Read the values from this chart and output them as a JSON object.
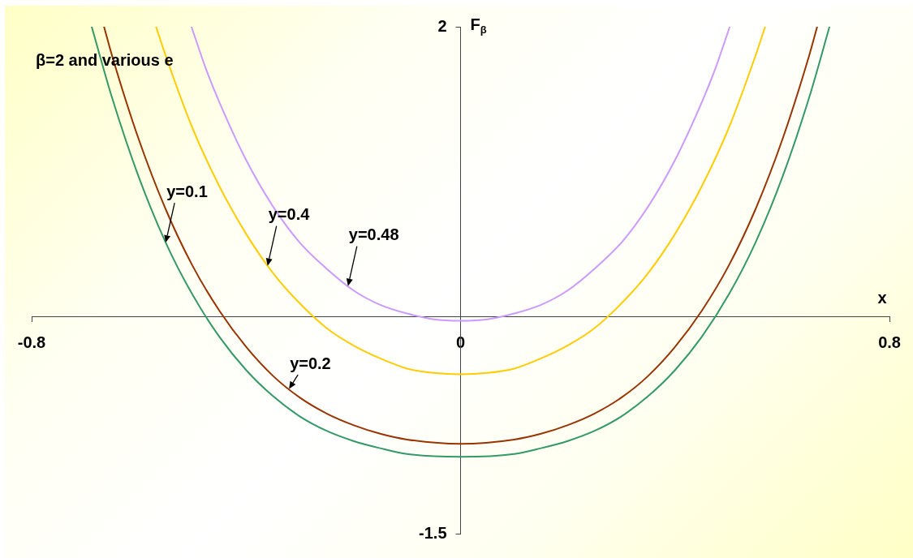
{
  "chart_data": {
    "type": "line",
    "title": "β=2 and various e",
    "xlabel": "x",
    "ylabel": "F$_{β}$",
    "xlim": [
      -0.8,
      0.8
    ],
    "xticks": [
      -0.8,
      0,
      0.8
    ],
    "ylim": [
      -1.5,
      2
    ],
    "yticks": [
      -1.5,
      2
    ],
    "series": [
      {
        "color": "#339966",
        "x": [
          -0.688,
          -0.65,
          -0.6,
          -0.55,
          -0.5,
          -0.45,
          -0.4,
          -0.35,
          -0.3,
          -0.25,
          -0.2,
          -0.15,
          -0.1,
          0,
          0.1,
          0.15,
          0.2,
          0.25,
          0.3,
          0.35,
          0.4,
          0.45,
          0.5,
          0.55,
          0.6,
          0.65,
          0.688
        ],
        "values": [
          2,
          1.51,
          0.96,
          0.51,
          0.15,
          -0.14,
          -0.37,
          -0.55,
          -0.69,
          -0.79,
          -0.86,
          -0.91,
          -0.95,
          -0.97,
          -0.95,
          -0.91,
          -0.86,
          -0.79,
          -0.69,
          -0.55,
          -0.37,
          -0.14,
          0.15,
          0.51,
          0.96,
          1.51,
          2
        ]
      },
      {
        "color": "#993300",
        "x": [
          -0.665,
          -0.65,
          -0.6,
          -0.55,
          -0.5,
          -0.45,
          -0.4,
          -0.35,
          -0.3,
          -0.25,
          -0.2,
          -0.15,
          -0.1,
          0,
          0.1,
          0.15,
          0.2,
          0.25,
          0.3,
          0.35,
          0.4,
          0.45,
          0.5,
          0.55,
          0.6,
          0.65,
          0.665
        ],
        "values": [
          2,
          1.8,
          1.22,
          0.74,
          0.35,
          0.04,
          -0.21,
          -0.41,
          -0.56,
          -0.67,
          -0.75,
          -0.81,
          -0.85,
          -0.88,
          -0.85,
          -0.81,
          -0.75,
          -0.67,
          -0.56,
          -0.41,
          -0.21,
          0.04,
          0.35,
          0.74,
          1.22,
          1.8,
          2
        ]
      },
      {
        "color": "#ffcc00",
        "x": [
          -0.568,
          -0.55,
          -0.5,
          -0.45,
          -0.4,
          -0.35,
          -0.3,
          -0.25,
          -0.2,
          -0.15,
          -0.1,
          -0.05,
          0,
          0.05,
          0.1,
          0.15,
          0.2,
          0.25,
          0.3,
          0.35,
          0.4,
          0.45,
          0.5,
          0.55,
          0.568
        ],
        "values": [
          2,
          1.8,
          1.3,
          0.9,
          0.57,
          0.3,
          0.09,
          -0.08,
          -0.2,
          -0.29,
          -0.36,
          -0.39,
          -0.4,
          -0.39,
          -0.36,
          -0.29,
          -0.2,
          -0.08,
          0.09,
          0.3,
          0.57,
          0.9,
          1.3,
          1.8,
          2
        ]
      },
      {
        "color": "#cc99ff",
        "x": [
          -0.502,
          -0.475,
          -0.45,
          -0.4,
          -0.35,
          -0.3,
          -0.25,
          -0.2,
          -0.15,
          -0.1,
          -0.05,
          0,
          0.05,
          0.1,
          0.15,
          0.2,
          0.25,
          0.3,
          0.35,
          0.4,
          0.45,
          0.475,
          0.502
        ],
        "values": [
          2,
          1.71,
          1.48,
          1.08,
          0.76,
          0.51,
          0.33,
          0.18,
          0.08,
          0.02,
          -0.02,
          -0.03,
          -0.02,
          0.02,
          0.08,
          0.18,
          0.33,
          0.51,
          0.76,
          1.08,
          1.48,
          1.71,
          2
        ]
      }
    ],
    "annotations": [
      {
        "text": "y=0.1",
        "x": -0.55,
        "y": 0.51
      },
      {
        "text": "y=0.4",
        "x": -0.36,
        "y": 0.35
      },
      {
        "text": "y=0.48",
        "x": -0.21,
        "y": 0.21
      },
      {
        "text": "y=0.2",
        "x": -0.32,
        "y": -0.5
      }
    ]
  }
}
